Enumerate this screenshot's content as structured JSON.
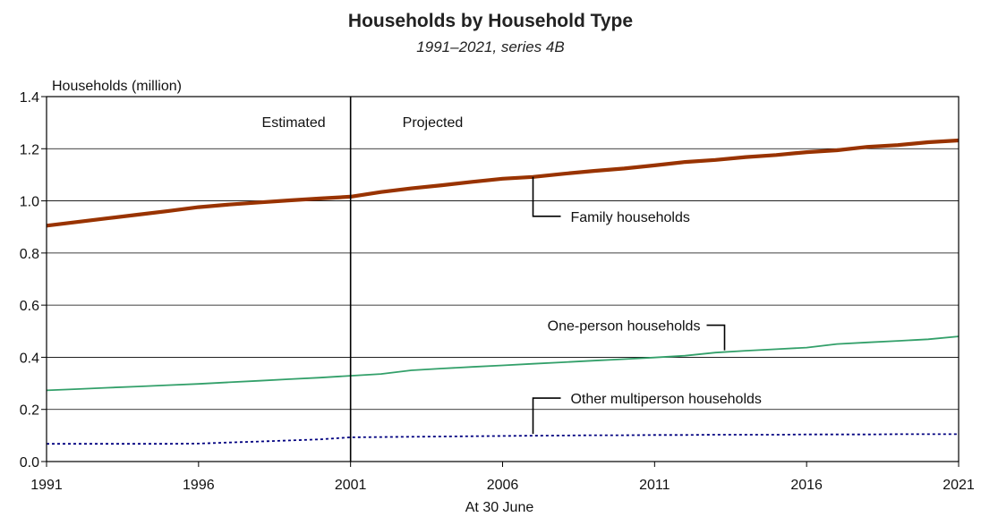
{
  "chart_data": {
    "type": "line",
    "title": "Households by Household Type",
    "subtitle": "1991–2021, series 4B",
    "ylabel": "Households (million)",
    "xlabel": "At 30 June",
    "xlim": [
      1991,
      2021
    ],
    "ylim": [
      0,
      1.4
    ],
    "x_ticks": [
      "1991",
      "1996",
      "2001",
      "2006",
      "2011",
      "2016",
      "2021"
    ],
    "y_ticks": [
      "0.0",
      "0.2",
      "0.4",
      "0.6",
      "0.8",
      "1.0",
      "1.2",
      "1.4"
    ],
    "grid": "horizontal",
    "divider": {
      "x": 2001,
      "left_label": "Estimated",
      "right_label": "Projected"
    },
    "x": [
      1991,
      1992,
      1993,
      1994,
      1995,
      1996,
      1997,
      1998,
      1999,
      2000,
      2001,
      2002,
      2003,
      2004,
      2005,
      2006,
      2007,
      2008,
      2009,
      2010,
      2011,
      2012,
      2013,
      2014,
      2015,
      2016,
      2017,
      2018,
      2019,
      2020,
      2021
    ],
    "series": [
      {
        "name": "Family households",
        "color": "#993300",
        "style": "thick",
        "values": [
          0.905,
          0.919,
          0.933,
          0.947,
          0.961,
          0.976,
          0.986,
          0.994,
          1.002,
          1.009,
          1.016,
          1.034,
          1.048,
          1.06,
          1.073,
          1.085,
          1.092,
          1.104,
          1.115,
          1.124,
          1.136,
          1.149,
          1.157,
          1.168,
          1.176,
          1.187,
          1.194,
          1.207,
          1.214,
          1.225,
          1.232
        ]
      },
      {
        "name": "One-person households",
        "color": "#33a06a",
        "style": "thin",
        "values": [
          0.273,
          0.278,
          0.283,
          0.288,
          0.293,
          0.298,
          0.304,
          0.31,
          0.316,
          0.322,
          0.329,
          0.336,
          0.35,
          0.357,
          0.363,
          0.369,
          0.375,
          0.381,
          0.387,
          0.393,
          0.399,
          0.406,
          0.418,
          0.425,
          0.431,
          0.437,
          0.451,
          0.457,
          0.463,
          0.469,
          0.48
        ]
      },
      {
        "name": "Other multiperson households",
        "color": "#000080",
        "style": "dotted",
        "values": [
          0.068,
          0.068,
          0.068,
          0.068,
          0.068,
          0.069,
          0.073,
          0.077,
          0.081,
          0.085,
          0.093,
          0.094,
          0.095,
          0.096,
          0.097,
          0.098,
          0.099,
          0.1,
          0.101,
          0.101,
          0.102,
          0.102,
          0.103,
          0.103,
          0.103,
          0.104,
          0.104,
          0.104,
          0.105,
          0.105,
          0.105
        ]
      }
    ]
  }
}
